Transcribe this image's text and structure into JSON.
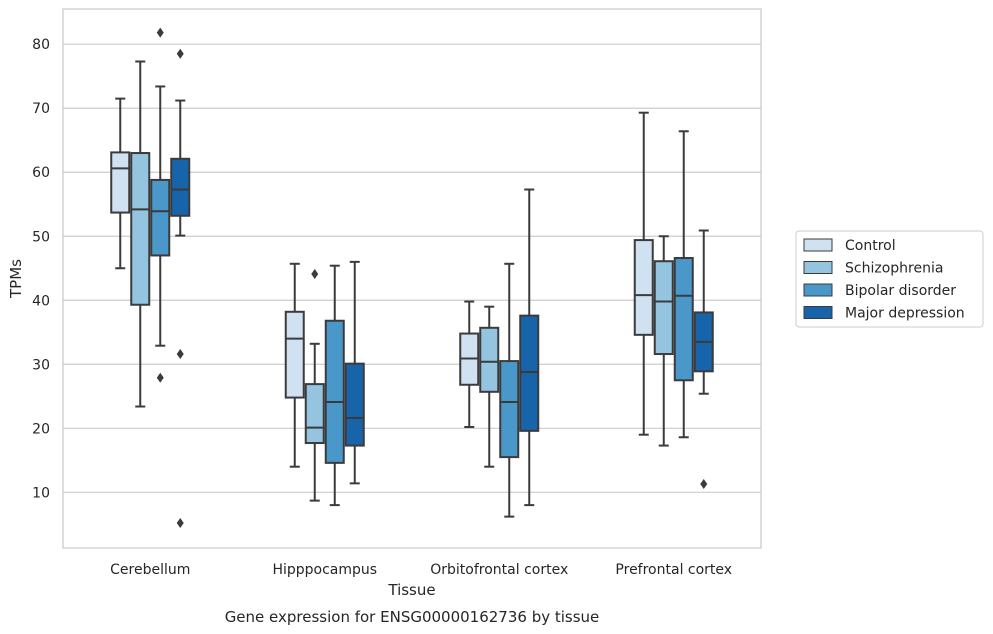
{
  "caption": "Gene expression for ENSG00000162736 by tissue",
  "chart_data": {
    "type": "box",
    "title": "",
    "xlabel": "Tissue",
    "ylabel": "TPMs",
    "ylim": [
      1.3,
      85.5
    ],
    "yticks": [
      10,
      20,
      30,
      40,
      50,
      60,
      70,
      80
    ],
    "grid": "horizontal",
    "legend_position": "right",
    "categories": [
      "Cerebellum",
      "Hipppocampus",
      "Orbitofrontal cortex",
      "Prefrontal cortex"
    ],
    "series": [
      {
        "name": "Control",
        "color": "#d0e1f2",
        "boxes": [
          {
            "whisker_low": 45,
            "q1": 53.7,
            "median": 60.6,
            "q3": 63.1,
            "whisker_high": 71.5,
            "outliers": []
          },
          {
            "whisker_low": 14,
            "q1": 24.8,
            "median": 34,
            "q3": 38.2,
            "whisker_high": 45.7,
            "outliers": []
          },
          {
            "whisker_low": 20.2,
            "q1": 26.8,
            "median": 30.9,
            "q3": 34.8,
            "whisker_high": 39.8,
            "outliers": []
          },
          {
            "whisker_low": 19,
            "q1": 34.6,
            "median": 40.8,
            "q3": 49.4,
            "whisker_high": 69.3,
            "outliers": []
          }
        ]
      },
      {
        "name": "Schizophrenia",
        "color": "#94c4df",
        "boxes": [
          {
            "whisker_low": 23.4,
            "q1": 39.3,
            "median": 54.2,
            "q3": 63,
            "whisker_high": 77.3,
            "outliers": []
          },
          {
            "whisker_low": 8.7,
            "q1": 17.7,
            "median": 20.1,
            "q3": 26.9,
            "whisker_high": 33.2,
            "outliers": [
              44.1
            ]
          },
          {
            "whisker_low": 14,
            "q1": 25.7,
            "median": 30.4,
            "q3": 35.7,
            "whisker_high": 39,
            "outliers": []
          },
          {
            "whisker_low": 17.3,
            "q1": 31.6,
            "median": 39.8,
            "q3": 46.1,
            "whisker_high": 50,
            "outliers": []
          }
        ]
      },
      {
        "name": "Bipolar disorder",
        "color": "#4a98c9",
        "boxes": [
          {
            "whisker_low": 32.9,
            "q1": 47,
            "median": 53.9,
            "q3": 58.8,
            "whisker_high": 73.4,
            "outliers": [
              27.9,
              81.8
            ]
          },
          {
            "whisker_low": 8,
            "q1": 14.6,
            "median": 24.1,
            "q3": 36.8,
            "whisker_high": 45.4,
            "outliers": []
          },
          {
            "whisker_low": 6.2,
            "q1": 15.5,
            "median": 24.1,
            "q3": 30.5,
            "whisker_high": 45.7,
            "outliers": []
          },
          {
            "whisker_low": 18.6,
            "q1": 27.5,
            "median": 40.7,
            "q3": 46.6,
            "whisker_high": 66.4,
            "outliers": []
          }
        ]
      },
      {
        "name": "Major depression",
        "color": "#1764ab",
        "boxes": [
          {
            "whisker_low": 50.1,
            "q1": 53.2,
            "median": 57.3,
            "q3": 62.1,
            "whisker_high": 71.2,
            "outliers": [
              31.6,
              5.2,
              78.5
            ]
          },
          {
            "whisker_low": 11.4,
            "q1": 17.3,
            "median": 21.6,
            "q3": 30.1,
            "whisker_high": 46,
            "outliers": []
          },
          {
            "whisker_low": 8,
            "q1": 19.6,
            "median": 28.8,
            "q3": 37.6,
            "whisker_high": 57.3,
            "outliers": []
          },
          {
            "whisker_low": 25.4,
            "q1": 28.9,
            "median": 33.5,
            "q3": 38.1,
            "whisker_high": 50.9,
            "outliers": [
              11.3
            ]
          }
        ]
      }
    ]
  }
}
